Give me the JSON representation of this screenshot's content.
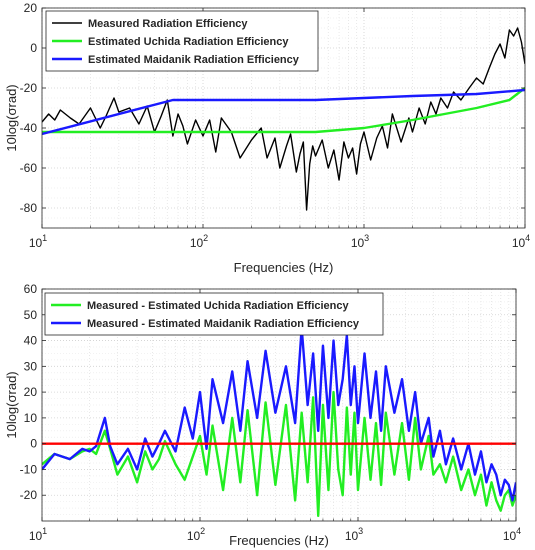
{
  "chart_data": [
    {
      "type": "line",
      "x_scale": "log",
      "xlim": [
        10,
        10000
      ],
      "ylim": [
        -90,
        20
      ],
      "xlabel": "Frequencies (Hz)",
      "ylabel": "10log(σrad)",
      "grid": true,
      "legend_position": "top-left",
      "x_ticks": [
        {
          "value": 10,
          "base": "10",
          "exp": "1"
        },
        {
          "value": 100,
          "base": "10",
          "exp": "2"
        },
        {
          "value": 1000,
          "base": "10",
          "exp": "3"
        },
        {
          "value": 10000,
          "base": "10",
          "exp": "4"
        }
      ],
      "y_ticks": [
        -80,
        -60,
        -40,
        -20,
        0,
        20
      ],
      "series": [
        {
          "name": "Measured Radiation Efficiency",
          "color": "#000000",
          "line_width": 1.4,
          "x": [
            10,
            11,
            12,
            13,
            15,
            17,
            20,
            23,
            25,
            28,
            30,
            35,
            40,
            45,
            50,
            55,
            60,
            65,
            70,
            75,
            80,
            90,
            100,
            110,
            120,
            130,
            150,
            170,
            200,
            230,
            250,
            280,
            300,
            330,
            350,
            380,
            400,
            420,
            440,
            460,
            480,
            500,
            550,
            600,
            650,
            700,
            750,
            800,
            850,
            900,
            950,
            1000,
            1100,
            1200,
            1300,
            1400,
            1500,
            1700,
            1900,
            2000,
            2200,
            2400,
            2600,
            2800,
            3000,
            3300,
            3600,
            4000,
            4500,
            5000,
            5500,
            6000,
            6500,
            7000,
            7500,
            8000,
            8500,
            9000,
            9500,
            10000
          ],
          "y": [
            -37,
            -33,
            -36,
            -31,
            -35,
            -38,
            -30,
            -40,
            -34,
            -25,
            -32,
            -30,
            -38,
            -29,
            -42,
            -34,
            -26,
            -44,
            -33,
            -39,
            -48,
            -36,
            -44,
            -36,
            -52,
            -35,
            -42,
            -55,
            -46,
            -40,
            -55,
            -45,
            -60,
            -49,
            -43,
            -62,
            -53,
            -47,
            -81,
            -58,
            -49,
            -54,
            -46,
            -60,
            -51,
            -66,
            -47,
            -55,
            -50,
            -63,
            -48,
            -42,
            -56,
            -45,
            -39,
            -50,
            -33,
            -47,
            -35,
            -42,
            -30,
            -38,
            -27,
            -33,
            -25,
            -30,
            -22,
            -26,
            -20,
            -15,
            -18,
            -10,
            -3,
            2,
            -5,
            9,
            6,
            10,
            3,
            -8
          ]
        },
        {
          "name": "Estimated Uchida Radiation Efficiency",
          "color": "#22ee22",
          "line_width": 2.4,
          "x": [
            10,
            100,
            200,
            500,
            1000,
            2000,
            5000,
            8000,
            10000
          ],
          "y": [
            -42,
            -42,
            -42,
            -42,
            -40,
            -36,
            -30,
            -26,
            -20
          ]
        },
        {
          "name": "Estimated Maidanik Radiation Efficiency",
          "color": "#1a1aff",
          "line_width": 2.4,
          "x": [
            10,
            65,
            100,
            500,
            1000,
            2000,
            5000,
            10000
          ],
          "y": [
            -43,
            -26,
            -26,
            -26,
            -25,
            -24,
            -23,
            -21
          ]
        }
      ]
    },
    {
      "type": "line",
      "x_scale": "log",
      "xlim": [
        10,
        10000
      ],
      "ylim": [
        -30,
        60
      ],
      "xlabel": "Frequencies (Hz)",
      "ylabel": "10log(σrad)",
      "grid": true,
      "legend_position": "top-left",
      "x_ticks": [
        {
          "value": 10,
          "base": "10",
          "exp": "1"
        },
        {
          "value": 100,
          "base": "10",
          "exp": "2"
        },
        {
          "value": 1000,
          "base": "10",
          "exp": "3"
        },
        {
          "value": 10000,
          "base": "10",
          "exp": "4"
        }
      ],
      "y_ticks": [
        -20,
        -10,
        0,
        10,
        20,
        30,
        40,
        50,
        60
      ],
      "series": [
        {
          "name": "Measured - Estimated Uchida Radiation Efficiency",
          "color": "#22ee22",
          "line_width": 2.4,
          "x": [
            10,
            12,
            15,
            18,
            20,
            22,
            25,
            27,
            30,
            35,
            40,
            45,
            50,
            55,
            60,
            70,
            80,
            90,
            100,
            110,
            120,
            140,
            160,
            180,
            200,
            230,
            260,
            300,
            350,
            400,
            440,
            480,
            520,
            560,
            600,
            650,
            700,
            750,
            800,
            850,
            900,
            950,
            1000,
            1100,
            1200,
            1300,
            1400,
            1500,
            1700,
            1900,
            2100,
            2300,
            2500,
            2800,
            3000,
            3300,
            3600,
            4000,
            4500,
            5000,
            5500,
            6000,
            6500,
            7000,
            7500,
            8000,
            8500,
            9000,
            9500,
            10000
          ],
          "y": [
            -8,
            -4,
            -6,
            -3,
            -2,
            -4,
            5,
            -2,
            -12,
            -5,
            -15,
            -3,
            -10,
            -6,
            1,
            -8,
            -14,
            -5,
            3,
            -12,
            7,
            -18,
            10,
            -15,
            13,
            -20,
            16,
            -16,
            15,
            -22,
            12,
            -15,
            18,
            -28,
            15,
            -18,
            20,
            -10,
            -20,
            14,
            -12,
            12,
            -18,
            10,
            -14,
            8,
            -16,
            12,
            -12,
            8,
            -14,
            10,
            -10,
            3,
            -12,
            -8,
            -15,
            -5,
            -18,
            -10,
            -20,
            -12,
            -24,
            -15,
            -22,
            -26,
            -20,
            -18,
            -24,
            -20
          ]
        },
        {
          "name": "Measured - Estimated Maidanik Radiation Efficiency",
          "color": "#1a1aff",
          "line_width": 2.4,
          "x": [
            10,
            12,
            15,
            18,
            20,
            22,
            25,
            27,
            30,
            35,
            40,
            45,
            50,
            55,
            60,
            70,
            80,
            90,
            100,
            110,
            120,
            140,
            160,
            180,
            200,
            230,
            260,
            300,
            350,
            400,
            440,
            480,
            520,
            560,
            600,
            650,
            700,
            750,
            800,
            850,
            900,
            950,
            1000,
            1100,
            1200,
            1300,
            1400,
            1500,
            1700,
            1900,
            2100,
            2300,
            2500,
            2800,
            3000,
            3300,
            3600,
            4000,
            4500,
            5000,
            5500,
            6000,
            6500,
            7000,
            7500,
            8000,
            8500,
            9000,
            9500,
            10000
          ],
          "y": [
            -10,
            -4,
            -6,
            -2,
            -3,
            -1,
            10,
            -1,
            -8,
            -2,
            -10,
            2,
            -5,
            0,
            5,
            -3,
            14,
            2,
            20,
            -2,
            25,
            8,
            28,
            5,
            32,
            10,
            36,
            12,
            30,
            8,
            45,
            15,
            35,
            5,
            38,
            10,
            40,
            15,
            25,
            42,
            15,
            30,
            8,
            35,
            10,
            28,
            5,
            30,
            12,
            25,
            5,
            20,
            0,
            10,
            -5,
            5,
            -8,
            2,
            -10,
            0,
            -12,
            -3,
            -15,
            -8,
            -12,
            -20,
            -14,
            -16,
            -22,
            -15
          ]
        },
        {
          "name": "",
          "color": "#ff0000",
          "line_width": 2.4,
          "x": [
            10,
            10000
          ],
          "y": [
            0,
            0
          ]
        }
      ]
    }
  ]
}
